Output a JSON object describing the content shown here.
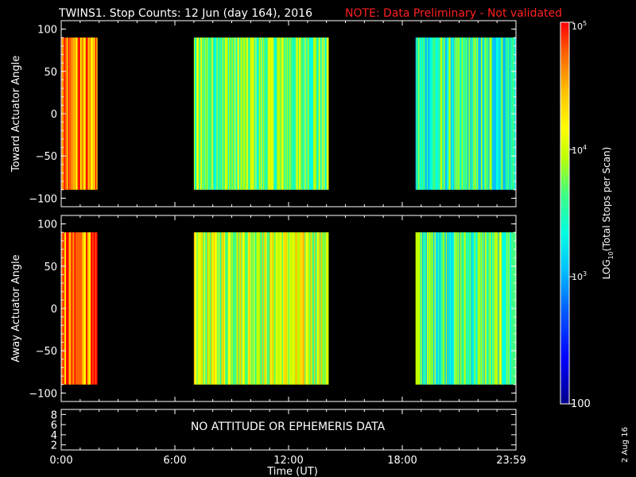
{
  "header": {
    "title": "TWINS1. Stop Counts: 12 Jun (day 164), 2016",
    "note": "NOTE: Data Preliminary - Not validated"
  },
  "panels": [
    {
      "id": "toward",
      "ylabel": "Toward Actuator Angle",
      "yticks": [
        "100",
        "50",
        "0",
        "−50",
        "−100"
      ]
    },
    {
      "id": "away",
      "ylabel": "Away Actuator Angle",
      "yticks": [
        "100",
        "50",
        "0",
        "−50",
        "−100"
      ]
    },
    {
      "id": "ephemeris",
      "ylabel": "",
      "yticks": [
        "8",
        "6",
        "4",
        "2"
      ],
      "message": "NO ATTITUDE OR EPHEMERIS DATA"
    }
  ],
  "xaxis": {
    "label": "Time (UT)",
    "ticks": [
      "0:00",
      "6:00",
      "12:00",
      "18:00",
      "23:59"
    ]
  },
  "colorbar": {
    "label_prefix": "LOG",
    "label_sub": "10",
    "label_suffix": "(Total Stops per Scan)",
    "tick_top_base": "10",
    "tick_top_exp": "5",
    "tick_mid_base": "10",
    "tick_mid_exp": "4",
    "tick_low_base": "10",
    "tick_low_exp": "3",
    "tick_bottom": "100",
    "colors": [
      "#00008b",
      "#0000ff",
      "#0060ff",
      "#00c0ff",
      "#00ffe0",
      "#40ff80",
      "#c0ff00",
      "#ffff00",
      "#ffc000",
      "#ff6000",
      "#ff0000"
    ]
  },
  "footer": {
    "date_stamp": "2 Aug 16"
  },
  "chart_data": {
    "type": "heatmap",
    "title": "TWINS1. Stop Counts: 12 Jun (day 164), 2016",
    "xlabel": "Time (UT)",
    "x_unit": "hours UT",
    "xlim": [
      0,
      24
    ],
    "ylim": [
      -110,
      110
    ],
    "colorscale": "log10",
    "zlim": [
      100,
      100000
    ],
    "data_intervals_hours": [
      [
        0.0,
        1.9
      ],
      [
        7.0,
        14.1
      ],
      [
        18.7,
        23.99
      ]
    ],
    "angle_range": [
      -90,
      90
    ],
    "panels": [
      {
        "name": "Toward Actuator Angle",
        "intervals": [
          {
            "start": 0.0,
            "end": 1.9,
            "typical_counts": 30000
          },
          {
            "start": 7.0,
            "end": 14.1,
            "typical_counts": 4000
          },
          {
            "start": 18.7,
            "end": 23.99,
            "typical_counts": 2000
          }
        ]
      },
      {
        "name": "Away Actuator Angle",
        "intervals": [
          {
            "start": 0.0,
            "end": 1.9,
            "typical_counts": 40000
          },
          {
            "start": 7.0,
            "end": 14.1,
            "typical_counts": 8000
          },
          {
            "start": 18.7,
            "end": 23.99,
            "typical_counts": 3000
          }
        ]
      }
    ]
  }
}
